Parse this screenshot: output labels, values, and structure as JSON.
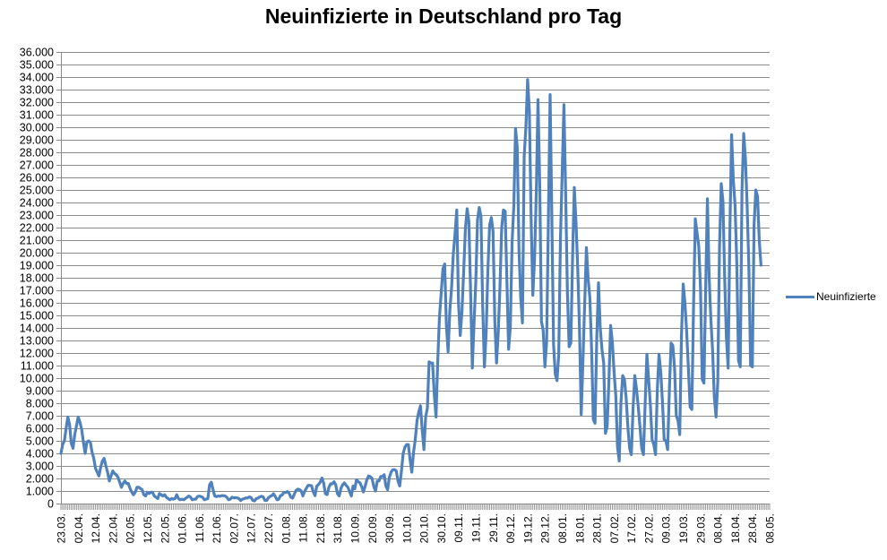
{
  "title": "Neuinfizierte in Deutschland pro Tag",
  "legend": {
    "label": "Neuinfizierte"
  },
  "colors": {
    "line": "#4F81BD",
    "grid": "#8B8B8B",
    "axis": "#8B8B8B",
    "text": "#000000",
    "background": "#FFFFFF"
  },
  "chart_data": {
    "type": "line",
    "title": "Neuinfizierte in Deutschland pro Tag",
    "xlabel": "",
    "ylabel": "",
    "ylim": [
      0,
      36000
    ],
    "y_tick_step": 1000,
    "grid": "horizontal",
    "legend_position": "right",
    "x_label_interval_days": 10,
    "y_tick_labels": [
      "0",
      "1.000",
      "2.000",
      "3.000",
      "4.000",
      "5.000",
      "6.000",
      "7.000",
      "8.000",
      "9.000",
      "10.000",
      "11.000",
      "12.000",
      "13.000",
      "14.000",
      "15.000",
      "16.000",
      "17.000",
      "18.000",
      "19.000",
      "20.000",
      "21.000",
      "22.000",
      "23.000",
      "24.000",
      "25.000",
      "26.000",
      "27.000",
      "28.000",
      "29.000",
      "30.000",
      "31.000",
      "32.000",
      "33.000",
      "34.000",
      "35.000",
      "36.000"
    ],
    "x_tick_labels": [
      "23.03.",
      "02.04.",
      "12.04.",
      "22.04.",
      "02.05.",
      "12.05.",
      "22.05.",
      "01.06.",
      "11.06.",
      "21.06.",
      "02.07.",
      "12.07.",
      "22.07.",
      "01.08.",
      "11.08.",
      "21.08.",
      "31.08.",
      "10.09.",
      "20.09.",
      "30.09.",
      "10.10.",
      "20.10.",
      "30.10.",
      "09.11.",
      "19.11.",
      "29.11.",
      "09.12.",
      "19.12.",
      "29.12.",
      "08.01.",
      "18.01.",
      "28.01.",
      "07.02.",
      "17.02.",
      "27.02.",
      "09.03.",
      "19.03.",
      "29.03.",
      "08.04.",
      "18.04.",
      "28.04.",
      "08.05."
    ],
    "series": [
      {
        "name": "Neuinfizierte",
        "color": "#4F81BD",
        "start_date": "23.03.2020",
        "frequency": "daily",
        "values": [
          4000,
          4700,
          5000,
          6000,
          6900,
          6300,
          4800,
          4400,
          5500,
          6200,
          6900,
          6500,
          5900,
          4900,
          4000,
          4900,
          5000,
          4900,
          4100,
          3600,
          2800,
          2500,
          2200,
          2900,
          3400,
          3600,
          3000,
          2500,
          1800,
          2200,
          2600,
          2400,
          2300,
          2100,
          1700,
          1300,
          1600,
          1800,
          1600,
          1600,
          1200,
          900,
          700,
          900,
          1300,
          1300,
          1200,
          1100,
          700,
          600,
          900,
          800,
          900,
          900,
          600,
          500,
          400,
          800,
          700,
          600,
          700,
          500,
          400,
          300,
          400,
          350,
          400,
          700,
          400,
          300,
          350,
          300,
          400,
          500,
          600,
          500,
          300,
          350,
          350,
          550,
          600,
          550,
          500,
          300,
          350,
          400,
          1500,
          1700,
          1100,
          600,
          550,
          600,
          580,
          630,
          630,
          600,
          500,
          300,
          350,
          500,
          450,
          470,
          450,
          400,
          240,
          350,
          390,
          450,
          440,
          530,
          480,
          250,
          210,
          400,
          430,
          530,
          580,
          530,
          250,
          240,
          450,
          570,
          630,
          780,
          560,
          300,
          340,
          630,
          680,
          900,
          870,
          955,
          820,
          510,
          430,
          740,
          1045,
          1150,
          1120,
          1000,
          610,
          970,
          1225,
          1445,
          1450,
          1415,
          920,
          630,
          1390,
          1510,
          1705,
          2035,
          1630,
          780,
          710,
          1280,
          1575,
          1570,
          1740,
          1490,
          780,
          610,
          1220,
          1500,
          1650,
          1450,
          1300,
          950,
          600,
          1400,
          1180,
          1900,
          1750,
          1650,
          1350,
          920,
          1400,
          1900,
          2200,
          2150,
          2000,
          1350,
          1000,
          1800,
          1800,
          2150,
          2150,
          2300,
          1400,
          1100,
          2100,
          2500,
          2700,
          2700,
          2600,
          1800,
          1400,
          2600,
          4000,
          4500,
          4700,
          4700,
          3500,
          2500,
          4100,
          5100,
          6600,
          7300,
          7800,
          5900,
          4300,
          6900,
          7600,
          11300,
          11200,
          11200,
          8700,
          6900,
          11400,
          14900,
          16800,
          18700,
          19100,
          14200,
          12100,
          15400,
          17200,
          19900,
          21500,
          23400,
          16000,
          13400,
          15300,
          18500,
          21900,
          23500,
          22500,
          16900,
          10800,
          14400,
          17600,
          22600,
          23600,
          22900,
          15700,
          10900,
          13600,
          18600,
          22200,
          22800,
          21700,
          14600,
          11200,
          13600,
          17300,
          22000,
          23400,
          23300,
          17800,
          12300,
          14100,
          20800,
          23700,
          29900,
          28400,
          20200,
          16400,
          14400,
          27700,
          30000,
          33800,
          31300,
          22800,
          16600,
          19500,
          24700,
          32200,
          25500,
          14500,
          13800,
          10900,
          12900,
          22500,
          32600,
          22900,
          12700,
          10300,
          9800,
          11900,
          21200,
          26400,
          31800,
          24700,
          16900,
          12500,
          12800,
          19600,
          25200,
          22400,
          18700,
          13900,
          7100,
          11400,
          15900,
          20400,
          17900,
          16400,
          12300,
          6700,
          6400,
          13200,
          17600,
          14000,
          12300,
          11200,
          5600,
          6100,
          9700,
          14200,
          12900,
          10500,
          8600,
          4500,
          3400,
          8100,
          10200,
          9900,
          8400,
          6100,
          4400,
          3900,
          7600,
          10200,
          9100,
          7700,
          6100,
          4400,
          3900,
          8000,
          11900,
          9900,
          7900,
          5100,
          4700,
          3900,
          9000,
          11900,
          10500,
          8100,
          5100,
          5000,
          4300,
          9100,
          12800,
          12600,
          10800,
          7000,
          6600,
          5500,
          13400,
          17500,
          16000,
          13700,
          10800,
          7700,
          7500,
          15800,
          22700,
          21600,
          20500,
          17200,
          9900,
          9600,
          17100,
          24300,
          18100,
          14700,
          12200,
          8500,
          6900,
          9700,
          20400,
          25500,
          24100,
          17900,
          13200,
          10800,
          21700,
          29400,
          25800,
          23800,
          19200,
          11400,
          10900,
          24900,
          29500,
          27500,
          23700,
          18800,
          11000,
          10900,
          22200,
          25000,
          24500,
          21000,
          19000
        ]
      }
    ]
  }
}
